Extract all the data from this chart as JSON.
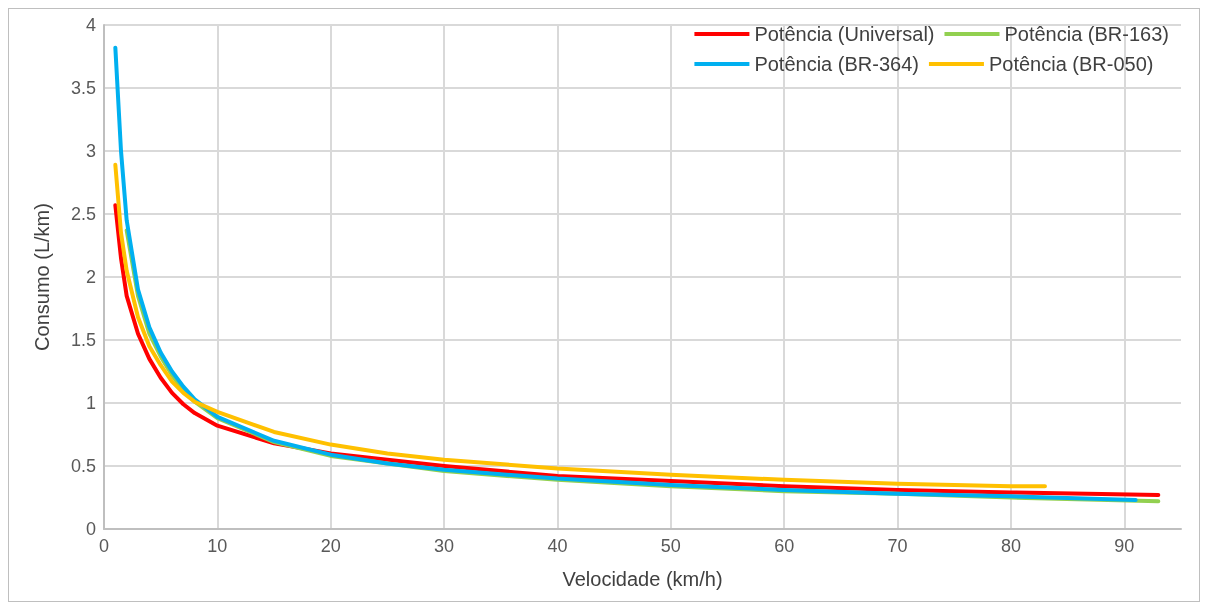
{
  "chart_data": {
    "type": "line",
    "xlabel": "Velocidade (km/h)",
    "ylabel": "Consumo (L/km)",
    "xlim": [
      0,
      95
    ],
    "xticks": [
      0,
      10,
      20,
      30,
      40,
      50,
      60,
      70,
      80,
      90
    ],
    "ylim": [
      0,
      4
    ],
    "yticks": [
      0,
      0.5,
      1,
      1.5,
      2,
      2.5,
      3,
      3.5,
      4
    ],
    "grid": true,
    "legend": "top right",
    "marker": "none",
    "line_style": "solid",
    "series": [
      {
        "name": "Potência (Universal)",
        "color": "#ff0000",
        "x": [
          1,
          1.5,
          2,
          3,
          4,
          5,
          6,
          7,
          8,
          10,
          15,
          20,
          25,
          30,
          40,
          50,
          60,
          70,
          80,
          93
        ],
        "values": [
          2.57,
          2.15,
          1.85,
          1.55,
          1.35,
          1.2,
          1.08,
          0.99,
          0.92,
          0.82,
          0.68,
          0.6,
          0.55,
          0.5,
          0.42,
          0.38,
          0.34,
          0.31,
          0.29,
          0.27
        ]
      },
      {
        "name": "Potência (BR-163)",
        "color": "#92d050",
        "x": [
          2,
          3,
          4,
          5,
          6,
          7,
          8,
          10,
          15,
          20,
          25,
          30,
          40,
          50,
          60,
          70,
          80,
          93
        ],
        "values": [
          2.37,
          1.85,
          1.55,
          1.37,
          1.22,
          1.1,
          1.01,
          0.88,
          0.69,
          0.58,
          0.52,
          0.46,
          0.39,
          0.34,
          0.3,
          0.28,
          0.25,
          0.22
        ]
      },
      {
        "name": "Potência (BR-364)",
        "color": "#00b0f0",
        "x": [
          1,
          1.5,
          2,
          3,
          4,
          5,
          6,
          7,
          8,
          10,
          15,
          20,
          25,
          30,
          40,
          50,
          60,
          70,
          80,
          91
        ],
        "values": [
          3.82,
          3.0,
          2.45,
          1.9,
          1.6,
          1.4,
          1.25,
          1.13,
          1.03,
          0.89,
          0.7,
          0.59,
          0.52,
          0.47,
          0.4,
          0.35,
          0.31,
          0.28,
          0.26,
          0.23
        ]
      },
      {
        "name": "Potência (BR-050)",
        "color": "#ffc000",
        "x": [
          1,
          1.5,
          2,
          3,
          4,
          5,
          6,
          7,
          8,
          10,
          15,
          20,
          25,
          30,
          40,
          50,
          60,
          70,
          80,
          83
        ],
        "values": [
          2.89,
          2.35,
          2.05,
          1.68,
          1.45,
          1.3,
          1.17,
          1.08,
          1.01,
          0.93,
          0.77,
          0.67,
          0.6,
          0.55,
          0.48,
          0.43,
          0.39,
          0.36,
          0.34,
          0.34
        ]
      }
    ]
  }
}
